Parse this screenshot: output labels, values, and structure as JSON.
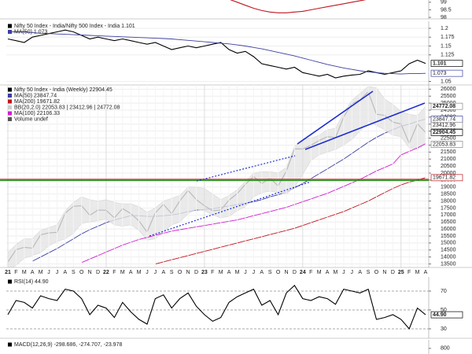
{
  "chart_data": [
    {
      "type": "line",
      "yticks": [
        99.0,
        98.5,
        98.0
      ],
      "ylim": [
        97.9,
        99.2
      ],
      "grid": false,
      "series": [
        {
          "color": "#c0141e",
          "values": [
            null,
            null,
            null,
            null,
            null,
            null,
            null,
            null,
            null,
            null,
            null,
            null,
            null,
            null,
            null,
            null,
            null,
            null,
            null,
            null,
            null,
            null,
            null,
            null,
            null,
            null,
            null,
            99.2,
            99.0,
            98.8,
            98.6,
            98.45,
            98.35,
            98.3,
            98.3,
            98.35,
            98.4,
            98.5,
            98.6,
            98.7,
            98.8,
            98.9,
            99.0,
            99.1,
            99.2,
            null,
            null,
            null,
            null,
            null,
            null,
            null
          ]
        }
      ]
    },
    {
      "type": "line",
      "ylim": [
        1.04,
        1.22
      ],
      "yticks": [
        1.2,
        1.175,
        1.15,
        1.125,
        1.05
      ],
      "grid": true,
      "last_labels": [
        1.101,
        1.073
      ],
      "last_label_colors": [
        "#000000",
        "#3b3fa0"
      ],
      "series": [
        {
          "name": "Nifty 50 Index - India/Nifty 500 Index - India 1.101",
          "color": "#000000",
          "values": [
            1.17,
            1.165,
            1.16,
            1.175,
            1.18,
            1.185,
            1.19,
            1.195,
            1.19,
            1.18,
            1.17,
            1.175,
            1.17,
            1.165,
            1.17,
            1.165,
            1.16,
            1.155,
            1.16,
            1.15,
            1.14,
            1.145,
            1.15,
            1.145,
            1.15,
            1.155,
            1.16,
            1.14,
            1.13,
            1.135,
            1.12,
            1.1,
            1.095,
            1.09,
            1.085,
            1.09,
            1.075,
            1.07,
            1.065,
            1.07,
            1.06,
            1.065,
            1.068,
            1.07,
            1.08,
            1.075,
            1.07,
            1.075,
            1.08,
            1.1,
            1.11,
            1.101
          ]
        },
        {
          "name": "MA(50) 1.073",
          "color": "#3b3fa0",
          "values": [
            1.19,
            1.19,
            1.19,
            1.188,
            1.186,
            1.185,
            1.184,
            1.183,
            1.182,
            1.181,
            1.18,
            1.179,
            1.178,
            1.177,
            1.176,
            1.175,
            1.174,
            1.173,
            1.172,
            1.171,
            1.17,
            1.168,
            1.166,
            1.164,
            1.162,
            1.16,
            1.158,
            1.156,
            1.153,
            1.15,
            1.146,
            1.142,
            1.137,
            1.132,
            1.127,
            1.122,
            1.116,
            1.11,
            1.104,
            1.098,
            1.093,
            1.088,
            1.084,
            1.08,
            1.077,
            1.075,
            1.073,
            1.072,
            1.071,
            1.072,
            1.072,
            1.073
          ]
        }
      ]
    },
    {
      "type": "line",
      "ylim": [
        13250,
        26300
      ],
      "yticks": [
        26000,
        25500,
        25000,
        24500,
        24000,
        23500,
        23000,
        22500,
        22000,
        21500,
        21000,
        20500,
        20000,
        19500,
        19000,
        18500,
        18000,
        17500,
        17000,
        16500,
        16000,
        15500,
        15000,
        14500,
        14000,
        13500
      ],
      "grid": true,
      "categories": [
        "21",
        "F",
        "M",
        "A",
        "M",
        "J",
        "J",
        "A",
        "S",
        "O",
        "N",
        "D",
        "22",
        "F",
        "M",
        "A",
        "M",
        "J",
        "J",
        "A",
        "S",
        "O",
        "N",
        "D",
        "23",
        "F",
        "M",
        "A",
        "M",
        "J",
        "J",
        "A",
        "S",
        "O",
        "N",
        "D",
        "24",
        "F",
        "M",
        "A",
        "M",
        "J",
        "J",
        "A",
        "S",
        "O",
        "N",
        "D",
        "25",
        "F",
        "M",
        "A"
      ],
      "last_labels": [
        24772.08,
        23847.74,
        23412.96,
        22904.45,
        22053.83,
        19671.82
      ],
      "last_label_colors": [
        "#888888",
        "#3b3fa0",
        "#888888",
        "#000000",
        "#888888",
        "#c0141e"
      ],
      "series": [
        {
          "name": "Nifty 50 Index - India (Weekly) 22904.45",
          "color": "#000000",
          "values": [
            13635,
            14529,
            14690,
            14631,
            15583,
            15722,
            15763,
            17132,
            17618,
            17672,
            16983,
            17354,
            17340,
            16794,
            17465,
            17103,
            16585,
            15780,
            17158,
            17759,
            17094,
            18012,
            18758,
            18105,
            17662,
            17304,
            17360,
            18065,
            18534,
            19189,
            19754,
            19254,
            19638,
            19080,
            20133,
            21731,
            21726,
            21983,
            22327,
            22605,
            22531,
            24011,
            24951,
            25236,
            25811,
            24205,
            24131,
            23645,
            23508,
            22125,
            23519,
            22904.45
          ]
        },
        {
          "name": "MA(50) 23847.74",
          "color": "#3b3fa0",
          "values": [
            null,
            null,
            null,
            13700,
            14000,
            14300,
            14600,
            14950,
            15300,
            15650,
            15950,
            16200,
            16450,
            16650,
            16800,
            16950,
            16950,
            16900,
            16900,
            16950,
            17000,
            17100,
            17250,
            17350,
            17400,
            17450,
            17550,
            17650,
            17750,
            17850,
            17950,
            18100,
            18300,
            18450,
            18650,
            18950,
            19250,
            19600,
            19950,
            20300,
            20650,
            21000,
            21400,
            21800,
            22200,
            22550,
            22850,
            23100,
            23350,
            23500,
            23700,
            23847.74
          ]
        },
        {
          "name": "MA(200) 19671.82",
          "color": "#c0141e",
          "values": [
            null,
            null,
            null,
            null,
            null,
            null,
            null,
            null,
            null,
            null,
            null,
            null,
            null,
            null,
            null,
            null,
            null,
            null,
            13500,
            13650,
            13800,
            13950,
            14100,
            14250,
            14400,
            14550,
            14700,
            14850,
            15000,
            15150,
            15300,
            15450,
            15600,
            15750,
            15900,
            16050,
            16250,
            16450,
            16650,
            16850,
            17050,
            17250,
            17500,
            17750,
            18000,
            18300,
            18600,
            18900,
            19150,
            19350,
            19500,
            19671.82
          ]
        },
        {
          "name": "BB(20,2.0) 22053.83 | 23412.96 | 24772.08",
          "color": "#cccccc",
          "upper": [
            14300,
            14900,
            15300,
            15300,
            15900,
            16100,
            16300,
            17300,
            17900,
            18300,
            18100,
            18000,
            18100,
            17900,
            17800,
            17800,
            17600,
            17200,
            17500,
            18000,
            18200,
            18400,
            19000,
            19000,
            18900,
            18500,
            18100,
            18400,
            18800,
            19400,
            20000,
            20100,
            20100,
            20000,
            20400,
            21900,
            22400,
            22500,
            22700,
            23100,
            23200,
            24300,
            25200,
            25700,
            26200,
            26100,
            25300,
            24900,
            24400,
            24200,
            24100,
            24772.08
          ],
          "lower": [
            13000,
            13400,
            13900,
            14100,
            14300,
            14800,
            15100,
            15300,
            15700,
            16400,
            16500,
            16600,
            16700,
            16300,
            16200,
            16300,
            15900,
            15200,
            15300,
            15800,
            16300,
            16500,
            17100,
            17400,
            17300,
            17000,
            16800,
            16900,
            17300,
            17600,
            18300,
            18600,
            18700,
            18600,
            18500,
            19000,
            19900,
            20900,
            21300,
            21500,
            21700,
            22000,
            22400,
            23000,
            23700,
            23400,
            23100,
            22700,
            22600,
            21800,
            21700,
            22053.83
          ]
        },
        {
          "name": "MA(100) 22106.33",
          "color": "#d21ccf",
          "values": [
            null,
            null,
            null,
            null,
            null,
            null,
            null,
            null,
            null,
            13600,
            13850,
            14100,
            14350,
            14600,
            14850,
            15050,
            15250,
            15400,
            15550,
            15700,
            15850,
            15950,
            16050,
            16150,
            16250,
            16350,
            16450,
            16550,
            16650,
            16800,
            16950,
            17100,
            17250,
            17400,
            17550,
            17750,
            17950,
            18150,
            18350,
            18550,
            18800,
            19050,
            19300,
            19550,
            19850,
            20150,
            20400,
            20650,
            21300,
            21550,
            21800,
            22106.33
          ]
        },
        {
          "name": "Volume undef",
          "color": "#555555"
        }
      ]
    },
    {
      "type": "line",
      "ylim": [
        20,
        85
      ],
      "yticks": [
        70,
        50,
        30
      ],
      "grid": false,
      "last_labels": [
        {
          "value": 44.9,
          "label": "44.90"
        }
      ],
      "last_label_colors": [
        "#000000"
      ],
      "series": [
        {
          "name": "RSI(14) 44.90",
          "color": "#000000",
          "values": [
            45,
            60,
            58,
            52,
            65,
            62,
            60,
            72,
            70,
            62,
            45,
            55,
            52,
            42,
            58,
            48,
            40,
            35,
            62,
            66,
            52,
            62,
            68,
            54,
            45,
            38,
            42,
            58,
            64,
            68,
            72,
            55,
            60,
            45,
            68,
            76,
            62,
            60,
            64,
            62,
            56,
            72,
            70,
            68,
            72,
            40,
            42,
            45,
            40,
            30,
            52,
            44.9
          ]
        }
      ]
    },
    {
      "type": "line",
      "ylim": [
        -200,
        1200
      ],
      "yticks": [
        800
      ],
      "grid": false,
      "series": [
        {
          "name": "MACD(12,26,9) -298.686, -274.707, -23.978",
          "color": "#000000"
        }
      ]
    }
  ]
}
